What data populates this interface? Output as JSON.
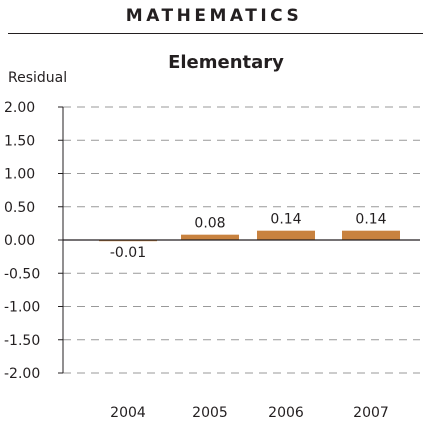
{
  "header": {
    "title": "MATHEMATICS"
  },
  "chart_data": {
    "type": "bar",
    "title": "Elementary",
    "ylabel": "Residual",
    "xlabel": "",
    "categories": [
      "2004",
      "2005",
      "2006",
      "2007"
    ],
    "values": [
      -0.01,
      0.08,
      0.14,
      0.14
    ],
    "value_labels": [
      "-0.01",
      "0.08",
      "0.14",
      "0.14"
    ],
    "ylim": [
      -2.0,
      2.0
    ],
    "yticks": [
      2.0,
      1.5,
      1.0,
      0.5,
      0.0,
      -0.5,
      -1.0,
      -1.5,
      -2.0
    ],
    "ytick_labels": [
      "2.00",
      "1.50",
      "1.00",
      "0.50",
      "0.00",
      "-0.50",
      "-1.00",
      "-1.50",
      "-2.00"
    ],
    "grid": true,
    "grid_style": "dashed",
    "bar_color": "#c8823f",
    "axis_color": "#231f20",
    "grid_color": "#999999"
  }
}
